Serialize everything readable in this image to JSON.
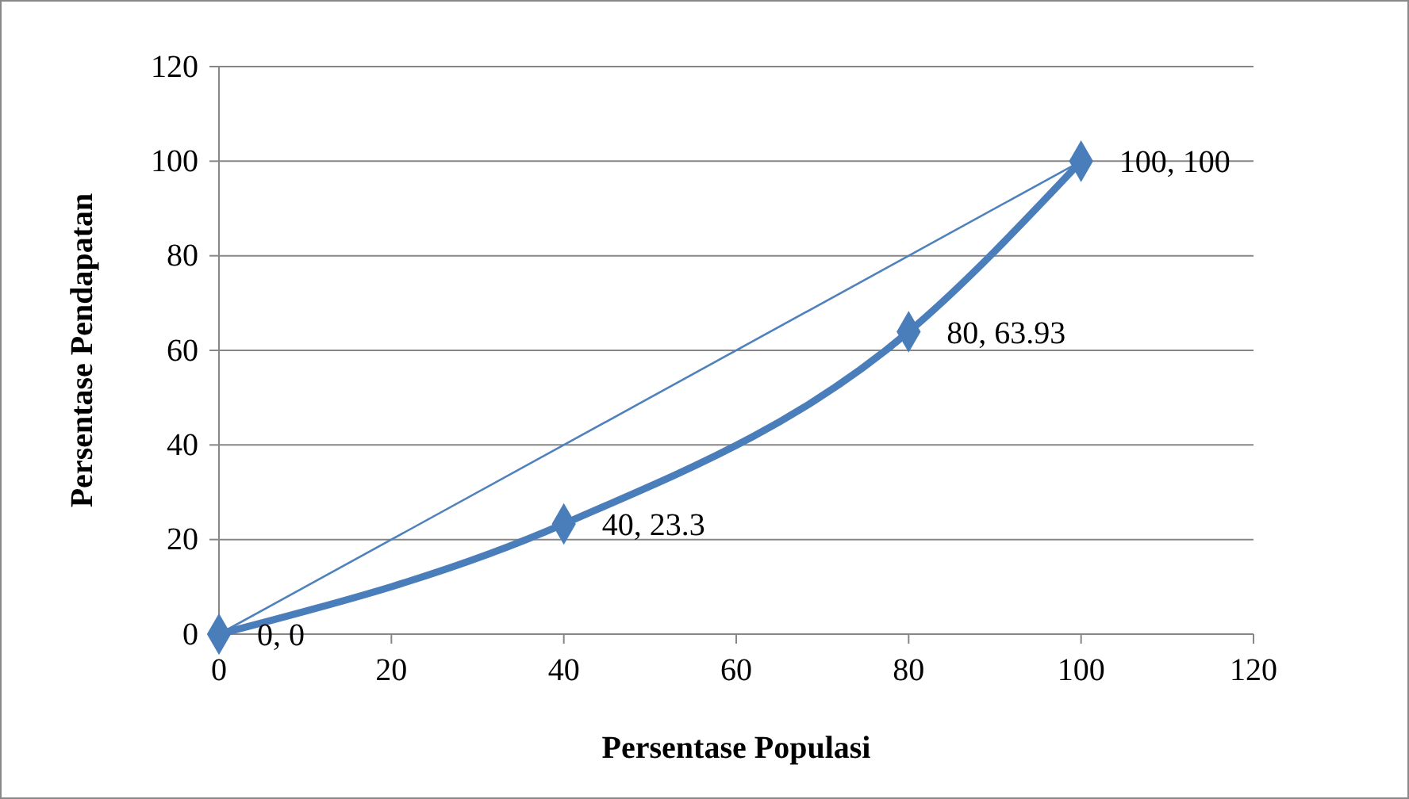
{
  "chart_data": {
    "type": "line",
    "xlabel": "Persentase Populasi",
    "ylabel": "Persentase Pendapatan",
    "xlim": [
      0,
      120
    ],
    "xticks": [
      0,
      20,
      40,
      60,
      80,
      100,
      120
    ],
    "ylim": [
      0,
      120
    ],
    "yticks": [
      0,
      20,
      40,
      60,
      80,
      100,
      120
    ],
    "grid": "y",
    "series": [
      {
        "color": "#4a7ebb",
        "marker": "diamond",
        "x": [
          0,
          40,
          80,
          100
        ],
        "values": [
          0,
          23.3,
          63.93,
          100
        ],
        "value_labels": [
          "0, 0",
          "40, 23.3",
          "80, 63.93",
          "100, 100"
        ]
      },
      {
        "color": "#4f81bd",
        "marker": "none",
        "x": [
          0,
          100
        ],
        "values": [
          0,
          100
        ]
      }
    ]
  }
}
